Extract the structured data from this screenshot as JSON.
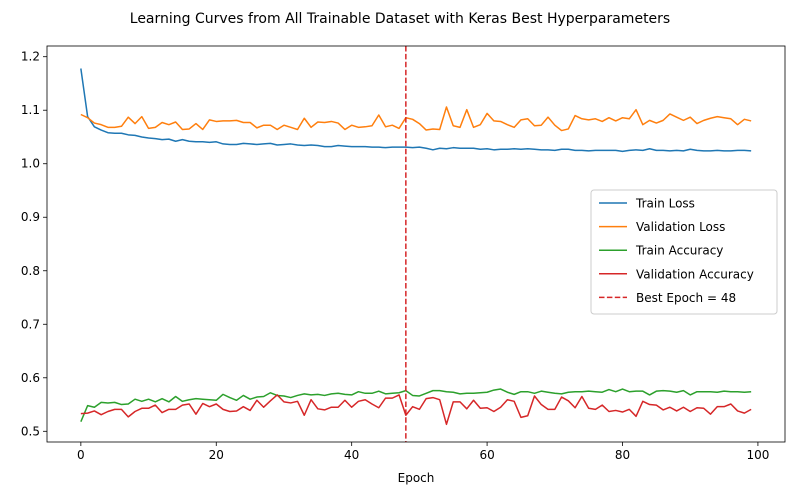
{
  "chart_data": {
    "type": "line",
    "title": "Learning Curves from All Trainable Dataset with Keras Best Hyperparameters",
    "xlabel": "Epoch",
    "ylabel": "",
    "xlim": [
      -5,
      104
    ],
    "ylim": [
      0.48,
      1.22
    ],
    "x_ticks": [
      0,
      20,
      40,
      60,
      80,
      100
    ],
    "y_ticks": [
      0.5,
      0.6,
      0.7,
      0.8,
      0.9,
      1.0,
      1.1,
      1.2
    ],
    "x_tick_labels": [
      "0",
      "20",
      "40",
      "60",
      "80",
      "100"
    ],
    "y_tick_labels": [
      "0.5",
      "0.6",
      "0.7",
      "0.8",
      "0.9",
      "1.0",
      "1.1",
      "1.2"
    ],
    "grid": false,
    "legend_position": "center-right",
    "x": [
      0,
      1,
      2,
      3,
      4,
      5,
      6,
      7,
      8,
      9,
      10,
      11,
      12,
      13,
      14,
      15,
      16,
      17,
      18,
      19,
      20,
      21,
      22,
      23,
      24,
      25,
      26,
      27,
      28,
      29,
      30,
      31,
      32,
      33,
      34,
      35,
      36,
      37,
      38,
      39,
      40,
      41,
      42,
      43,
      44,
      45,
      46,
      47,
      48,
      49,
      50,
      51,
      52,
      53,
      54,
      55,
      56,
      57,
      58,
      59,
      60,
      61,
      62,
      63,
      64,
      65,
      66,
      67,
      68,
      69,
      70,
      71,
      72,
      73,
      74,
      75,
      76,
      77,
      78,
      79,
      80,
      81,
      82,
      83,
      84,
      85,
      86,
      87,
      88,
      89,
      90,
      91,
      92,
      93,
      94,
      95,
      96,
      97,
      98,
      99
    ],
    "series": [
      {
        "name": "Train Loss",
        "color": "#1f77b4",
        "values": [
          1.178,
          1.088,
          1.069,
          1.063,
          1.058,
          1.057,
          1.057,
          1.054,
          1.053,
          1.05,
          1.048,
          1.047,
          1.045,
          1.046,
          1.042,
          1.045,
          1.042,
          1.041,
          1.041,
          1.04,
          1.041,
          1.037,
          1.036,
          1.036,
          1.038,
          1.037,
          1.036,
          1.037,
          1.038,
          1.035,
          1.036,
          1.037,
          1.035,
          1.034,
          1.035,
          1.034,
          1.032,
          1.032,
          1.034,
          1.033,
          1.032,
          1.032,
          1.032,
          1.031,
          1.031,
          1.03,
          1.031,
          1.031,
          1.031,
          1.03,
          1.031,
          1.029,
          1.026,
          1.029,
          1.028,
          1.03,
          1.029,
          1.029,
          1.029,
          1.027,
          1.028,
          1.026,
          1.027,
          1.027,
          1.028,
          1.027,
          1.028,
          1.027,
          1.026,
          1.026,
          1.025,
          1.027,
          1.027,
          1.025,
          1.025,
          1.024,
          1.025,
          1.025,
          1.025,
          1.025,
          1.023,
          1.025,
          1.026,
          1.025,
          1.028,
          1.025,
          1.025,
          1.024,
          1.025,
          1.024,
          1.027,
          1.025,
          1.024,
          1.024,
          1.025,
          1.024,
          1.024,
          1.025,
          1.025,
          1.024
        ]
      },
      {
        "name": "Validation Loss",
        "color": "#ff7f0e",
        "values": [
          1.092,
          1.086,
          1.076,
          1.073,
          1.068,
          1.068,
          1.07,
          1.087,
          1.075,
          1.088,
          1.066,
          1.068,
          1.077,
          1.073,
          1.078,
          1.064,
          1.065,
          1.075,
          1.064,
          1.082,
          1.079,
          1.08,
          1.08,
          1.081,
          1.077,
          1.077,
          1.067,
          1.072,
          1.072,
          1.064,
          1.072,
          1.068,
          1.064,
          1.085,
          1.068,
          1.078,
          1.077,
          1.079,
          1.076,
          1.064,
          1.072,
          1.068,
          1.069,
          1.071,
          1.091,
          1.069,
          1.072,
          1.066,
          1.086,
          1.083,
          1.075,
          1.063,
          1.065,
          1.064,
          1.106,
          1.071,
          1.068,
          1.101,
          1.068,
          1.073,
          1.094,
          1.08,
          1.079,
          1.073,
          1.068,
          1.082,
          1.084,
          1.071,
          1.072,
          1.087,
          1.072,
          1.062,
          1.065,
          1.09,
          1.084,
          1.082,
          1.084,
          1.079,
          1.086,
          1.08,
          1.086,
          1.084,
          1.101,
          1.073,
          1.081,
          1.076,
          1.081,
          1.093,
          1.087,
          1.081,
          1.087,
          1.075,
          1.081,
          1.085,
          1.088,
          1.086,
          1.084,
          1.073,
          1.083,
          1.08
        ]
      },
      {
        "name": "Train Accuracy",
        "color": "#2ca02c",
        "values": [
          0.518,
          0.548,
          0.545,
          0.554,
          0.553,
          0.554,
          0.55,
          0.551,
          0.56,
          0.556,
          0.56,
          0.555,
          0.561,
          0.555,
          0.565,
          0.556,
          0.559,
          0.561,
          0.56,
          0.559,
          0.558,
          0.569,
          0.563,
          0.558,
          0.567,
          0.56,
          0.564,
          0.565,
          0.572,
          0.567,
          0.566,
          0.563,
          0.567,
          0.57,
          0.568,
          0.569,
          0.567,
          0.57,
          0.571,
          0.569,
          0.568,
          0.574,
          0.571,
          0.571,
          0.575,
          0.57,
          0.571,
          0.572,
          0.576,
          0.567,
          0.566,
          0.571,
          0.576,
          0.576,
          0.574,
          0.573,
          0.57,
          0.571,
          0.571,
          0.572,
          0.573,
          0.577,
          0.579,
          0.573,
          0.569,
          0.574,
          0.574,
          0.571,
          0.575,
          0.573,
          0.571,
          0.57,
          0.573,
          0.574,
          0.574,
          0.575,
          0.574,
          0.573,
          0.578,
          0.574,
          0.579,
          0.574,
          0.575,
          0.575,
          0.568,
          0.575,
          0.576,
          0.575,
          0.573,
          0.576,
          0.568,
          0.574,
          0.574,
          0.574,
          0.573,
          0.575,
          0.574,
          0.574,
          0.573,
          0.574
        ]
      },
      {
        "name": "Validation Accuracy",
        "color": "#d62728",
        "values": [
          0.533,
          0.534,
          0.538,
          0.531,
          0.537,
          0.541,
          0.541,
          0.527,
          0.537,
          0.543,
          0.543,
          0.549,
          0.535,
          0.541,
          0.541,
          0.549,
          0.551,
          0.532,
          0.552,
          0.546,
          0.551,
          0.541,
          0.537,
          0.538,
          0.546,
          0.539,
          0.558,
          0.545,
          0.557,
          0.568,
          0.555,
          0.553,
          0.556,
          0.53,
          0.559,
          0.542,
          0.54,
          0.545,
          0.545,
          0.558,
          0.545,
          0.556,
          0.559,
          0.551,
          0.544,
          0.562,
          0.562,
          0.568,
          0.53,
          0.546,
          0.541,
          0.561,
          0.563,
          0.559,
          0.513,
          0.555,
          0.555,
          0.542,
          0.558,
          0.543,
          0.544,
          0.537,
          0.545,
          0.559,
          0.556,
          0.526,
          0.529,
          0.566,
          0.55,
          0.541,
          0.541,
          0.564,
          0.557,
          0.544,
          0.565,
          0.543,
          0.541,
          0.549,
          0.537,
          0.539,
          0.536,
          0.541,
          0.528,
          0.556,
          0.55,
          0.549,
          0.54,
          0.545,
          0.538,
          0.545,
          0.537,
          0.544,
          0.543,
          0.532,
          0.546,
          0.546,
          0.551,
          0.538,
          0.534,
          0.541
        ]
      }
    ],
    "best_epoch": {
      "label": "Best Epoch = 48",
      "x": 48,
      "color": "#d62728",
      "style": "dashed"
    }
  }
}
